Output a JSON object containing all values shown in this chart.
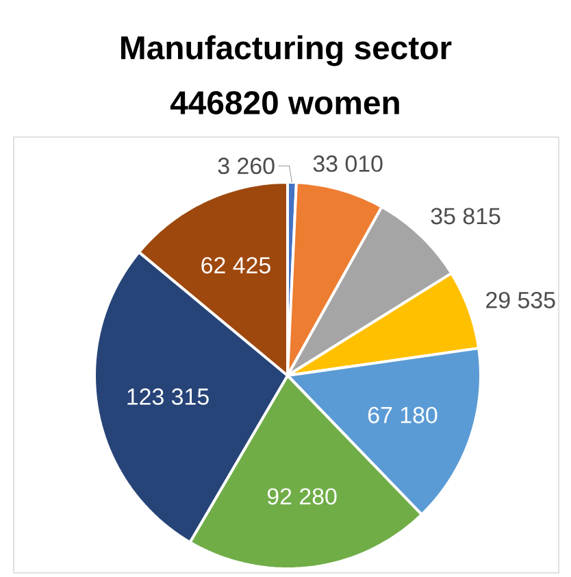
{
  "chart_data": {
    "type": "pie",
    "title": "Manufacturing sector",
    "subtitle": "446820 women",
    "categories": [
      null,
      null,
      null,
      null,
      null,
      null,
      null,
      null
    ],
    "values": [
      3260,
      33010,
      35815,
      29535,
      67180,
      92280,
      123315,
      62425
    ],
    "value_labels": [
      "3 260",
      "33 010",
      "35 815",
      "29 535",
      "67 180",
      "92 280",
      "123 315",
      "62 425"
    ],
    "colors": [
      "#4472c4",
      "#ed7d31",
      "#a5a5a5",
      "#ffc000",
      "#5b9bd5",
      "#70ad47",
      "#264478",
      "#9e480e"
    ]
  }
}
